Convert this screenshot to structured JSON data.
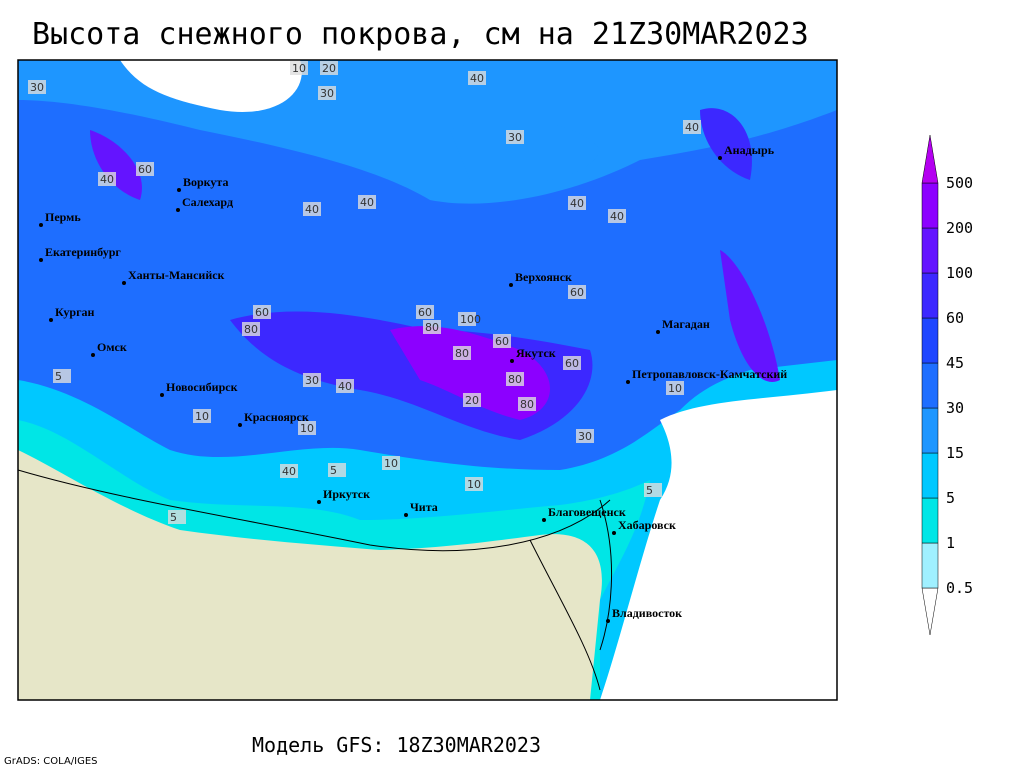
{
  "title": "Высота снежного покрова, см на 21Z30MAR2023",
  "model": "Модель GFS: 18Z30MAR2023",
  "credit": "GrADS: COLA/IGES",
  "legend": {
    "levels": [
      "0.5",
      "1",
      "5",
      "15",
      "30",
      "45",
      "60",
      "100",
      "200",
      "500"
    ],
    "colors": [
      "#ffffff",
      "#a0f0ff",
      "#00e6e6",
      "#00c8ff",
      "#1e96ff",
      "#1e6eff",
      "#1e46ff",
      "#3c28ff",
      "#6414ff",
      "#8c00ff",
      "#b400f0"
    ]
  },
  "cities": [
    "Воркута",
    "Салехард",
    "Пермь",
    "Екатеринбург",
    "Ханты-Мансийск",
    "Курган",
    "Омск",
    "Новосибирск",
    "Красноярск",
    "Иркутск",
    "Чита",
    "Верхоянск",
    "Якутск",
    "Магадан",
    "Анадырь",
    "Петропавловск-Камчатский",
    "Благовещенск",
    "Хабаровск",
    "Владивосток"
  ],
  "contour_labels": [
    "40",
    "30",
    "20",
    "10",
    "30",
    "40",
    "60",
    "40",
    "40",
    "40",
    "60",
    "80",
    "100",
    "60",
    "80",
    "80",
    "60",
    "80",
    "30",
    "40",
    "10",
    "20",
    "10",
    "5",
    "5",
    "10",
    "5",
    "40",
    "30",
    "10",
    "5",
    "10",
    "40",
    "30",
    "60",
    "80",
    "60",
    "40"
  ]
}
